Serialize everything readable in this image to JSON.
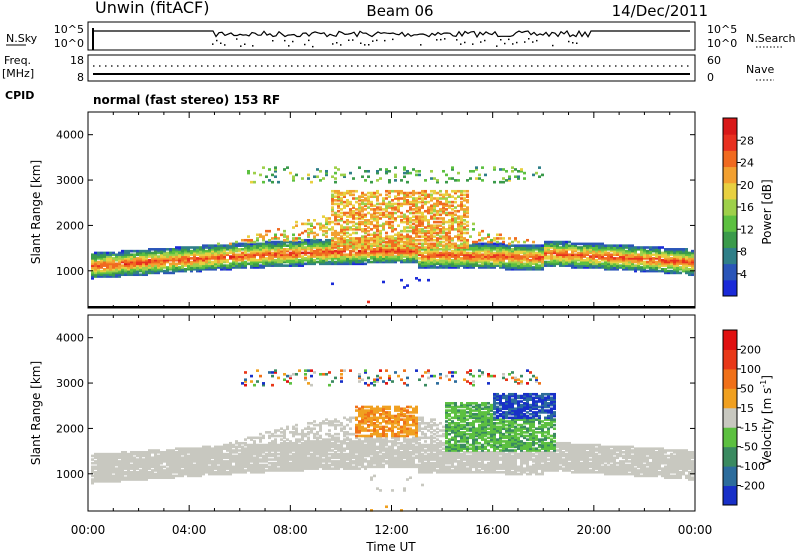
{
  "header": {
    "station": "Unwin (fitACF)",
    "beam": "Beam 06",
    "date": "14/Dec/2011"
  },
  "noise_panel": {
    "left_label": "N.Sky",
    "right_label": "N.Search",
    "left_ticks": [
      "10^5",
      "10^0"
    ],
    "right_ticks": [
      "10^5",
      "10^0"
    ]
  },
  "freq_panel": {
    "left_label_1": "Freq.",
    "left_label_2": "[MHz]",
    "right_label": "Nave",
    "left_ticks": [
      "18",
      "8"
    ],
    "right_ticks": [
      "60",
      "0"
    ]
  },
  "cpid": {
    "label": "CPID",
    "mode_text": "normal (fast stereo) 153 RF"
  },
  "chart_data": [
    {
      "type": "heatmap",
      "ylabel": "Slant Range [km]",
      "yticks": [
        "4000",
        "3000",
        "2000",
        "1000"
      ],
      "ylim": [
        180,
        4500
      ],
      "xlim": [
        0,
        24
      ],
      "colorbar": {
        "label": "Power [dB]",
        "ticks": [
          "28",
          "24",
          "20",
          "16",
          "12",
          "8",
          "4"
        ],
        "range": [
          0,
          32
        ],
        "colors": [
          "#1a2ad8",
          "#2a55b8",
          "#2f7f88",
          "#3a9a4a",
          "#5cc040",
          "#9ed04a",
          "#e8d040",
          "#f2a030",
          "#f06a20",
          "#e83020",
          "#d81818"
        ]
      }
    },
    {
      "type": "heatmap",
      "ylabel": "Slant Range [km]",
      "yticks": [
        "4000",
        "3000",
        "2000",
        "1000"
      ],
      "ylim": [
        180,
        4500
      ],
      "xlim": [
        0,
        24
      ],
      "xlabel": "Time UT",
      "xticks": [
        "00:00",
        "04:00",
        "08:00",
        "12:00",
        "16:00",
        "20:00",
        "00:00"
      ],
      "colorbar": {
        "label": "Velocity [m s",
        "label_sup": "-1",
        "label_end": "]",
        "ticks": [
          "200",
          "100",
          "50",
          "15",
          "-15",
          "-50",
          "-100",
          "-200"
        ],
        "colors": [
          "#1830c8",
          "#2c6c9c",
          "#3a8a60",
          "#5cc040",
          "#c8c8c0",
          "#f0a020",
          "#f07018",
          "#e83818",
          "#e01010"
        ]
      }
    }
  ]
}
